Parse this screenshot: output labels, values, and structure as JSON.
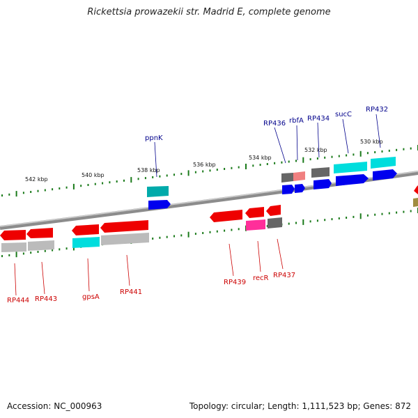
{
  "title": "Rickettsia prowazekii str. Madrid E, complete genome",
  "footer": {
    "accession": "Accession: NC_000963",
    "summary": "Topology: circular; Length: 1,111,523 bp; Genes: 872"
  },
  "colors": {
    "backbone": "#8c8c8c",
    "tick": "#1a7a1a",
    "forward_label": "#00008b",
    "reverse_label": "#cc0000",
    "red": "#ee0000",
    "cyan": "#00dddd",
    "teal": "#00aaaa",
    "blue": "#0000ee",
    "gray": "#bbbbbb",
    "darkgray": "#666666",
    "magenta": "#ff2f9a",
    "pink": "#f08080",
    "olive": "#a08c40"
  },
  "scale_labels": [
    "542 kbp",
    "540 kbp",
    "538 kbp",
    "536 kbp",
    "534 kbp",
    "532 kbp",
    "530 kbp"
  ],
  "forward_labels": [
    "ppnK",
    "RP436",
    "rbfA",
    "RP434",
    "sucC",
    "RP432"
  ],
  "reverse_labels": [
    "RP444",
    "RP443",
    "gpsA",
    "RP441",
    "RP439",
    "recR",
    "RP437"
  ]
}
